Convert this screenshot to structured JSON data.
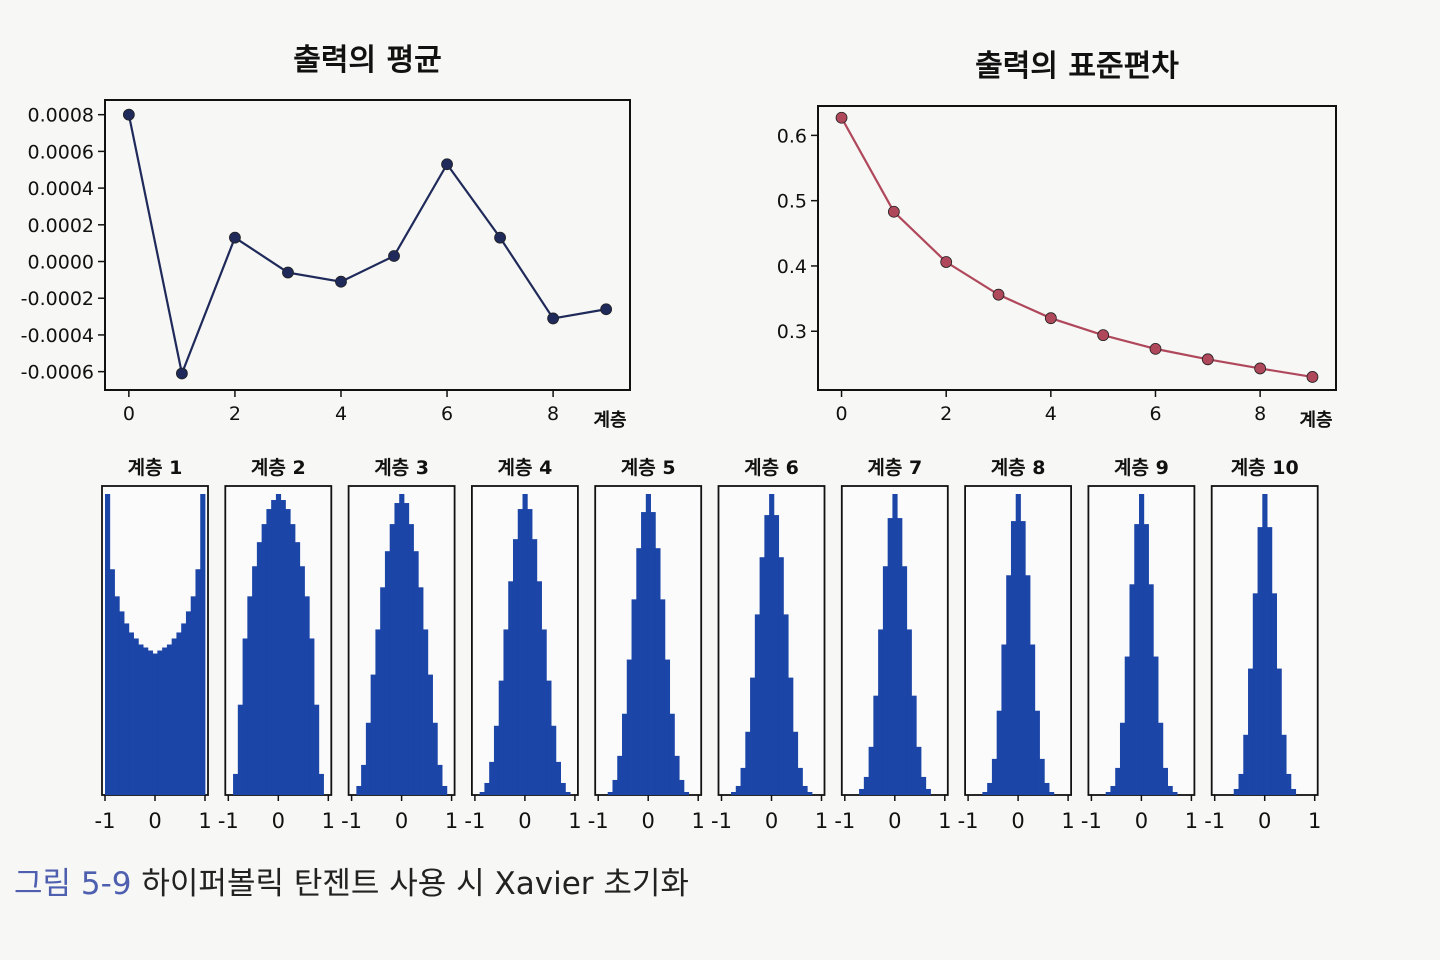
{
  "caption": {
    "label": "그림 5-9",
    "text": " 하이퍼볼릭 탄젠트 사용 시 Xavier 초기화"
  },
  "colors": {
    "mean_line": "#1f2a5a",
    "std_line": "#b0485c",
    "histogram": "#1c45a8",
    "axes": "#111111"
  },
  "chart_data": [
    {
      "type": "line",
      "title": "출력의 평균",
      "xlabel": "계층",
      "ylabel": "",
      "x": [
        0,
        1,
        2,
        3,
        4,
        5,
        6,
        7,
        8,
        9
      ],
      "series": [
        {
          "values": [
            0.0008,
            -0.00061,
            0.00013,
            -6e-05,
            -0.00011,
            3e-05,
            0.00053,
            0.00013,
            -0.00031,
            -0.00026
          ]
        }
      ],
      "xticks": [
        0,
        2,
        4,
        6,
        8
      ],
      "xtick_labels": [
        "0",
        "2",
        "4",
        "6",
        "8"
      ],
      "yticks": [
        0.0008,
        0.0006,
        0.0004,
        0.0002,
        0.0,
        -0.0002,
        -0.0004,
        -0.0006
      ],
      "ytick_labels": [
        "0.0008",
        "0.0006",
        "0.0004",
        "0.0002",
        "0.0000",
        "-0.0002",
        "-0.0004",
        "-0.0006"
      ],
      "xlim": [
        -0.45,
        9.45
      ],
      "ylim": [
        -0.0007,
        0.00088
      ],
      "grid": false,
      "color": "#1f2a5a"
    },
    {
      "type": "line",
      "title": "출력의 표준편차",
      "xlabel": "계층",
      "ylabel": "",
      "x": [
        0,
        1,
        2,
        3,
        4,
        5,
        6,
        7,
        8,
        9
      ],
      "series": [
        {
          "values": [
            0.627,
            0.483,
            0.406,
            0.356,
            0.32,
            0.294,
            0.273,
            0.257,
            0.243,
            0.23
          ]
        }
      ],
      "xticks": [
        0,
        2,
        4,
        6,
        8
      ],
      "xtick_labels": [
        "0",
        "2",
        "4",
        "6",
        "8"
      ],
      "yticks": [
        0.6,
        0.5,
        0.4,
        0.3
      ],
      "ytick_labels": [
        "0.6",
        "0.5",
        "0.4",
        "0.3"
      ],
      "xlim": [
        -0.45,
        9.45
      ],
      "ylim": [
        0.21,
        0.645
      ],
      "grid": false,
      "color": "#b0485c"
    },
    {
      "type": "bar",
      "title": "계층 1",
      "xticks": [
        -1,
        0,
        1
      ],
      "xtick_labels": [
        "-1",
        "0",
        "1"
      ],
      "categories": [
        "-1.0",
        "-0.9",
        "-0.8",
        "-0.7",
        "-0.6",
        "-0.5",
        "-0.4",
        "-0.3",
        "-0.2",
        "-0.1",
        "0.0",
        "0.1",
        "0.2",
        "0.3",
        "0.4",
        "0.5",
        "0.6",
        "0.7",
        "0.8",
        "0.9",
        "1.0"
      ],
      "values": [
        100,
        75,
        66,
        61,
        57,
        54,
        52,
        50,
        49,
        48,
        47,
        48,
        49,
        50,
        52,
        54,
        57,
        61,
        66,
        75,
        100
      ]
    },
    {
      "type": "bar",
      "title": "계층 2",
      "xticks": [
        -1,
        0,
        1
      ],
      "xtick_labels": [
        "-1",
        "0",
        "1"
      ],
      "categories": [
        "-1.0",
        "-0.9",
        "-0.8",
        "-0.7",
        "-0.6",
        "-0.5",
        "-0.4",
        "-0.3",
        "-0.2",
        "-0.1",
        "0.0",
        "0.1",
        "0.2",
        "0.3",
        "0.4",
        "0.5",
        "0.6",
        "0.7",
        "0.8",
        "0.9",
        "1.0"
      ],
      "values": [
        0,
        7,
        30,
        52,
        66,
        76,
        84,
        90,
        95,
        98,
        100,
        98,
        95,
        90,
        84,
        76,
        66,
        52,
        30,
        7,
        0
      ]
    },
    {
      "type": "bar",
      "title": "계층 3",
      "xticks": [
        -1,
        0,
        1
      ],
      "xtick_labels": [
        "-1",
        "0",
        "1"
      ],
      "categories": [
        "-1.0",
        "-0.9",
        "-0.8",
        "-0.7",
        "-0.6",
        "-0.5",
        "-0.4",
        "-0.3",
        "-0.2",
        "-0.1",
        "0.0",
        "0.1",
        "0.2",
        "0.3",
        "0.4",
        "0.5",
        "0.6",
        "0.7",
        "0.8",
        "0.9",
        "1.0"
      ],
      "values": [
        0,
        3,
        10,
        24,
        40,
        55,
        69,
        81,
        90,
        97,
        100,
        97,
        90,
        81,
        69,
        55,
        40,
        24,
        10,
        3,
        0
      ]
    },
    {
      "type": "bar",
      "title": "계층 4",
      "xticks": [
        -1,
        0,
        1
      ],
      "xtick_labels": [
        "-1",
        "0",
        "1"
      ],
      "categories": [
        "-1.0",
        "-0.9",
        "-0.8",
        "-0.7",
        "-0.6",
        "-0.5",
        "-0.4",
        "-0.3",
        "-0.2",
        "-0.1",
        "0.0",
        "0.1",
        "0.2",
        "0.3",
        "0.4",
        "0.5",
        "0.6",
        "0.7",
        "0.8",
        "0.9",
        "1.0"
      ],
      "values": [
        0,
        1,
        4,
        11,
        23,
        38,
        55,
        71,
        85,
        95,
        100,
        95,
        85,
        71,
        55,
        38,
        23,
        11,
        4,
        1,
        0
      ]
    },
    {
      "type": "bar",
      "title": "계층 5",
      "xticks": [
        -1,
        0,
        1
      ],
      "xtick_labels": [
        "-1",
        "0",
        "1"
      ],
      "categories": [
        "-1.0",
        "-0.9",
        "-0.8",
        "-0.7",
        "-0.6",
        "-0.5",
        "-0.4",
        "-0.3",
        "-0.2",
        "-0.1",
        "0.0",
        "0.1",
        "0.2",
        "0.3",
        "0.4",
        "0.5",
        "0.6",
        "0.7",
        "0.8",
        "0.9",
        "1.0"
      ],
      "values": [
        0,
        0,
        1,
        5,
        13,
        27,
        45,
        65,
        82,
        94,
        100,
        94,
        82,
        65,
        45,
        27,
        13,
        5,
        1,
        0,
        0
      ]
    },
    {
      "type": "bar",
      "title": "계층 6",
      "xticks": [
        -1,
        0,
        1
      ],
      "xtick_labels": [
        "-1",
        "0",
        "1"
      ],
      "categories": [
        "-1.0",
        "-0.9",
        "-0.8",
        "-0.7",
        "-0.6",
        "-0.5",
        "-0.4",
        "-0.3",
        "-0.2",
        "-0.1",
        "0.0",
        "0.1",
        "0.2",
        "0.3",
        "0.4",
        "0.5",
        "0.6",
        "0.7",
        "0.8",
        "0.9",
        "1.0"
      ],
      "values": [
        0,
        0,
        1,
        3,
        9,
        21,
        39,
        60,
        79,
        93,
        100,
        93,
        79,
        60,
        39,
        21,
        9,
        3,
        1,
        0,
        0
      ]
    },
    {
      "type": "bar",
      "title": "계층 7",
      "xticks": [
        -1,
        0,
        1
      ],
      "xtick_labels": [
        "-1",
        "0",
        "1"
      ],
      "categories": [
        "-1.0",
        "-0.9",
        "-0.8",
        "-0.7",
        "-0.6",
        "-0.5",
        "-0.4",
        "-0.3",
        "-0.2",
        "-0.1",
        "0.0",
        "0.1",
        "0.2",
        "0.3",
        "0.4",
        "0.5",
        "0.6",
        "0.7",
        "0.8",
        "0.9",
        "1.0"
      ],
      "values": [
        0,
        0,
        0,
        2,
        6,
        16,
        33,
        55,
        76,
        92,
        100,
        92,
        76,
        55,
        33,
        16,
        6,
        2,
        0,
        0,
        0
      ]
    },
    {
      "type": "bar",
      "title": "계층 8",
      "xticks": [
        -1,
        0,
        1
      ],
      "xtick_labels": [
        "-1",
        "0",
        "1"
      ],
      "categories": [
        "-1.0",
        "-0.9",
        "-0.8",
        "-0.7",
        "-0.6",
        "-0.5",
        "-0.4",
        "-0.3",
        "-0.2",
        "-0.1",
        "0.0",
        "0.1",
        "0.2",
        "0.3",
        "0.4",
        "0.5",
        "0.6",
        "0.7",
        "0.8",
        "0.9",
        "1.0"
      ],
      "values": [
        0,
        0,
        0,
        1,
        4,
        12,
        28,
        50,
        73,
        91,
        100,
        91,
        73,
        50,
        28,
        12,
        4,
        1,
        0,
        0,
        0
      ]
    },
    {
      "type": "bar",
      "title": "계층 9",
      "xticks": [
        -1,
        0,
        1
      ],
      "xtick_labels": [
        "-1",
        "0",
        "1"
      ],
      "categories": [
        "-1.0",
        "-0.9",
        "-0.8",
        "-0.7",
        "-0.6",
        "-0.5",
        "-0.4",
        "-0.3",
        "-0.2",
        "-0.1",
        "0.0",
        "0.1",
        "0.2",
        "0.3",
        "0.4",
        "0.5",
        "0.6",
        "0.7",
        "0.8",
        "0.9",
        "1.0"
      ],
      "values": [
        0,
        0,
        0,
        1,
        3,
        9,
        24,
        46,
        70,
        90,
        100,
        90,
        70,
        46,
        24,
        9,
        3,
        1,
        0,
        0,
        0
      ]
    },
    {
      "type": "bar",
      "title": "계층 10",
      "xticks": [
        -1,
        0,
        1
      ],
      "xtick_labels": [
        "-1",
        "0",
        "1"
      ],
      "categories": [
        "-1.0",
        "-0.9",
        "-0.8",
        "-0.7",
        "-0.6",
        "-0.5",
        "-0.4",
        "-0.3",
        "-0.2",
        "-0.1",
        "0.0",
        "0.1",
        "0.2",
        "0.3",
        "0.4",
        "0.5",
        "0.6",
        "0.7",
        "0.8",
        "0.9",
        "1.0"
      ],
      "values": [
        0,
        0,
        0,
        0,
        2,
        7,
        20,
        42,
        67,
        89,
        100,
        89,
        67,
        42,
        20,
        7,
        2,
        0,
        0,
        0,
        0
      ]
    }
  ]
}
